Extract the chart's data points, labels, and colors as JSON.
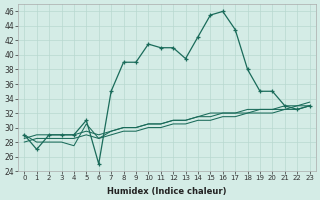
{
  "xlabel": "Humidex (Indice chaleur)",
  "x": [
    0,
    1,
    2,
    3,
    4,
    5,
    6,
    7,
    8,
    9,
    10,
    11,
    12,
    13,
    14,
    15,
    16,
    17,
    18,
    19,
    20,
    21,
    22,
    23
  ],
  "line1": [
    29,
    27,
    29,
    29,
    29,
    31,
    25,
    35,
    39,
    39,
    41.5,
    41,
    41,
    39.5,
    42.5,
    45.5,
    46,
    43.5,
    38,
    35,
    35,
    33,
    32.5,
    33
  ],
  "line2": [
    29,
    28,
    28,
    28,
    27.5,
    30.5,
    28.5,
    29.5,
    30,
    30,
    30.5,
    30.5,
    31,
    31,
    31.5,
    31.5,
    32,
    32,
    32,
    32.5,
    32.5,
    32.5,
    33,
    33
  ],
  "line3": [
    28,
    28.5,
    28.5,
    28.5,
    28.5,
    29,
    28.5,
    29,
    29.5,
    29.5,
    30,
    30,
    30.5,
    30.5,
    31,
    31,
    31.5,
    31.5,
    32,
    32,
    32,
    32.5,
    32.5,
    33
  ],
  "line4": [
    28.5,
    29,
    29,
    29,
    29,
    29.5,
    29,
    29.5,
    30,
    30,
    30.5,
    30.5,
    31,
    31,
    31.5,
    32,
    32,
    32,
    32.5,
    32.5,
    32.5,
    33,
    33,
    33.5
  ],
  "bg_color": "#d4ece6",
  "grid_color": "#b8d8d0",
  "line_color": "#1a6b5a",
  "ylim": [
    24,
    47
  ],
  "yticks": [
    24,
    26,
    28,
    30,
    32,
    34,
    36,
    38,
    40,
    42,
    44,
    46
  ],
  "xlim": [
    -0.5,
    23.5
  ],
  "figsize": [
    3.2,
    2.0
  ],
  "dpi": 100
}
